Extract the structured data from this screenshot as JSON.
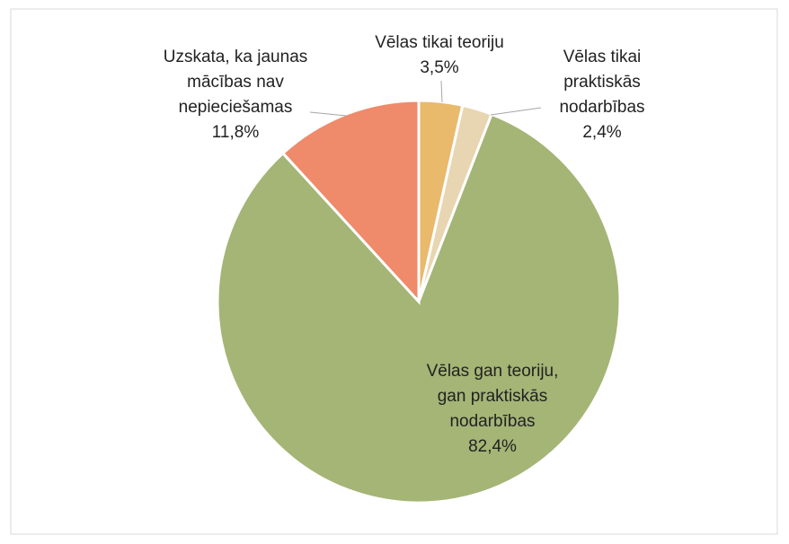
{
  "chart_data": {
    "type": "pie",
    "categories": [
      [
        "Vēlas tikai teoriju"
      ],
      [
        "Vēlas tikai",
        "praktiskās",
        "nodarbības"
      ],
      [
        "Vēlas gan teoriju,",
        "gan praktiskās",
        "nodarbības"
      ],
      [
        "Uzskata, ka jaunas",
        "mācības nav",
        "nepieciešamas"
      ]
    ],
    "values": [
      3.5,
      2.4,
      82.4,
      11.8
    ],
    "value_labels": [
      "3,5%",
      "2,4%",
      "82,4%",
      "11,8%"
    ],
    "colors": [
      "#e9b96c",
      "#e7d6b1",
      "#a4b576",
      "#ef8a6b"
    ]
  }
}
